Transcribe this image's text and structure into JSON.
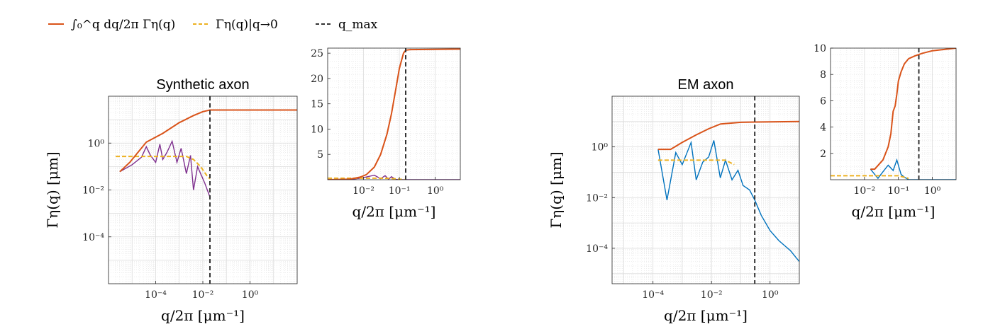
{
  "legend": {
    "items": [
      {
        "label": "∫₀^q dq/2π Γη(q)",
        "style": "solid",
        "color": "#d95319"
      },
      {
        "label": "Γη(q)|q→0",
        "style": "dashed",
        "color": "#edb120"
      },
      {
        "label": "q_max",
        "style": "dashed",
        "color": "#333333"
      }
    ]
  },
  "colors": {
    "cumulative": "#d95319",
    "limit": "#edb120",
    "qmax": "#333333",
    "synthetic": "#7e2f8e",
    "em": "#0072bd",
    "grid": "#dcdcdc"
  },
  "chart_data": [
    {
      "id": "synthetic_main",
      "type": "line",
      "title": "Synthetic axon",
      "xlabel": "q/2π [μm⁻¹]",
      "ylabel": "Γη(q) [μm]",
      "xscale": "log",
      "yscale": "log",
      "xlim": [
        1e-06,
        100
      ],
      "ylim": [
        1e-06,
        100
      ],
      "xticks": [
        {
          "v": 0.0001,
          "l": "10⁻⁴"
        },
        {
          "v": 0.01,
          "l": "10⁻²"
        },
        {
          "v": 1,
          "l": "10⁰"
        }
      ],
      "yticks": [
        {
          "v": 0.0001,
          "l": "10⁻⁴"
        },
        {
          "v": 0.01,
          "l": "10⁻²"
        },
        {
          "v": 1,
          "l": "10⁰"
        }
      ],
      "grid": true,
      "qmax": 0.02,
      "series": [
        {
          "role": "cumulative",
          "x": [
            3e-06,
            8e-06,
            4e-05,
            0.0002,
            0.001,
            0.004,
            0.01,
            0.02,
            100
          ],
          "y": [
            0.06,
            0.15,
            1.1,
            2.6,
            7.5,
            15,
            22,
            25.8,
            25.8
          ]
        },
        {
          "role": "limit",
          "x": [
            2e-06,
            0.0001,
            0.002,
            0.004,
            0.008,
            0.015,
            0.02
          ],
          "y": [
            0.27,
            0.27,
            0.27,
            0.2,
            0.1,
            0.04,
            0.03
          ]
        },
        {
          "role": "data",
          "x": [
            3e-06,
            1e-05,
            2.5e-05,
            4e-05,
            6e-05,
            0.0001,
            0.00015,
            0.0002,
            0.0003,
            0.0005,
            0.0008,
            0.0012,
            0.002,
            0.003,
            0.004,
            0.006,
            0.008,
            0.012,
            0.02
          ],
          "y": [
            0.06,
            0.12,
            0.25,
            0.7,
            0.3,
            0.15,
            0.9,
            0.2,
            0.4,
            1.2,
            0.15,
            0.6,
            0.05,
            0.3,
            0.01,
            0.1,
            0.05,
            0.02,
            0.005
          ]
        }
      ]
    },
    {
      "id": "synthetic_inset",
      "type": "line",
      "xlabel": "q/2π [μm⁻¹]",
      "xscale": "log",
      "yscale": "linear",
      "xlim": [
        0.001,
        5
      ],
      "ylim": [
        0,
        26
      ],
      "xticks": [
        {
          "v": 0.01,
          "l": "10⁻²"
        },
        {
          "v": 0.1,
          "l": "10⁻¹"
        },
        {
          "v": 1,
          "l": "10⁰"
        }
      ],
      "yticks": [
        {
          "v": 5,
          "l": "5"
        },
        {
          "v": 10,
          "l": "10"
        },
        {
          "v": 15,
          "l": "15"
        },
        {
          "v": 20,
          "l": "20"
        },
        {
          "v": 25,
          "l": "25"
        }
      ],
      "grid": true,
      "qmax": 0.15,
      "series": [
        {
          "role": "cumulative",
          "x": [
            0.001,
            0.004,
            0.008,
            0.012,
            0.02,
            0.03,
            0.045,
            0.06,
            0.08,
            0.1,
            0.13,
            0.15,
            0.2,
            1,
            5
          ],
          "y": [
            0,
            0.1,
            0.5,
            1,
            2.5,
            5,
            9,
            13,
            18,
            22,
            25,
            25.6,
            25.7,
            25.75,
            25.8
          ]
        },
        {
          "role": "limit",
          "x": [
            0.001,
            0.03,
            0.06,
            0.1,
            0.15
          ],
          "y": [
            0.3,
            0.3,
            0.25,
            0.1,
            0
          ]
        },
        {
          "role": "data",
          "x": [
            0.001,
            0.005,
            0.01,
            0.02,
            0.03,
            0.04,
            0.05,
            0.06,
            0.08,
            0.1,
            0.2,
            5
          ],
          "y": [
            0,
            0.1,
            0.4,
            0.9,
            0.2,
            0.8,
            0.1,
            0.6,
            0.05,
            0,
            0,
            0
          ]
        }
      ]
    },
    {
      "id": "em_main",
      "type": "line",
      "title": "EM axon",
      "xlabel": "q/2π [μm⁻¹]",
      "ylabel": "Γη(q) [μm]",
      "xscale": "log",
      "yscale": "log",
      "xlim": [
        4e-06,
        10
      ],
      "ylim": [
        4e-06,
        100
      ],
      "xticks": [
        {
          "v": 0.0001,
          "l": "10⁻⁴"
        },
        {
          "v": 0.01,
          "l": "10⁻²"
        },
        {
          "v": 1,
          "l": "10⁰"
        }
      ],
      "yticks": [
        {
          "v": 0.0001,
          "l": "10⁻⁴"
        },
        {
          "v": 0.01,
          "l": "10⁻²"
        },
        {
          "v": 1,
          "l": "10⁰"
        }
      ],
      "grid": true,
      "qmax": 0.3,
      "series": [
        {
          "role": "cumulative",
          "x": [
            0.00015,
            0.0004,
            0.001,
            0.003,
            0.008,
            0.02,
            0.1,
            0.3,
            10
          ],
          "y": [
            0.8,
            0.8,
            1.5,
            3,
            5.2,
            8,
            9.3,
            9.6,
            10
          ]
        },
        {
          "role": "limit",
          "x": [
            0.00015,
            0.01,
            0.03,
            0.06
          ],
          "y": [
            0.3,
            0.3,
            0.3,
            0.2
          ]
        },
        {
          "role": "data",
          "x": [
            0.00015,
            0.0003,
            0.0006,
            0.001,
            0.002,
            0.003,
            0.005,
            0.008,
            0.012,
            0.02,
            0.03,
            0.05,
            0.08,
            0.12,
            0.2,
            0.3,
            0.5,
            1,
            2,
            5,
            10
          ],
          "y": [
            0.8,
            0.008,
            0.6,
            0.2,
            1.5,
            0.05,
            0.25,
            0.4,
            1.8,
            0.06,
            0.3,
            0.05,
            0.12,
            0.03,
            0.02,
            0.008,
            0.002,
            0.0005,
            0.0002,
            8e-05,
            3e-05
          ]
        }
      ]
    },
    {
      "id": "em_inset",
      "type": "line",
      "xlabel": "q/2π [μm⁻¹]",
      "xscale": "log",
      "yscale": "linear",
      "xlim": [
        0.001,
        5
      ],
      "ylim": [
        0,
        10
      ],
      "xticks": [
        {
          "v": 0.01,
          "l": "10⁻²"
        },
        {
          "v": 0.1,
          "l": "10⁻¹"
        },
        {
          "v": 1,
          "l": "10⁰"
        }
      ],
      "yticks": [
        {
          "v": 2,
          "l": "2"
        },
        {
          "v": 4,
          "l": "4"
        },
        {
          "v": 6,
          "l": "6"
        },
        {
          "v": 8,
          "l": "8"
        },
        {
          "v": 10,
          "l": "10"
        }
      ],
      "grid": true,
      "qmax": 0.4,
      "series": [
        {
          "role": "cumulative",
          "x": [
            0.015,
            0.02,
            0.035,
            0.05,
            0.06,
            0.07,
            0.08,
            0.09,
            0.1,
            0.12,
            0.15,
            0.2,
            0.3,
            0.5,
            1,
            5
          ],
          "y": [
            0.8,
            0.8,
            1.5,
            2.5,
            3.5,
            5.2,
            5.6,
            6.5,
            7.5,
            8.2,
            8.8,
            9.2,
            9.4,
            9.6,
            9.8,
            10
          ]
        },
        {
          "role": "limit",
          "x": [
            0.001,
            0.05,
            0.1,
            0.2
          ],
          "y": [
            0.3,
            0.3,
            0.3,
            0.1
          ]
        },
        {
          "role": "data",
          "x": [
            0.015,
            0.025,
            0.035,
            0.05,
            0.07,
            0.09,
            0.12,
            0.15,
            0.2,
            0.4,
            5
          ],
          "y": [
            0.8,
            0.1,
            0.6,
            1.1,
            0.7,
            1.5,
            0.4,
            0.2,
            0,
            0,
            0
          ]
        }
      ]
    }
  ]
}
